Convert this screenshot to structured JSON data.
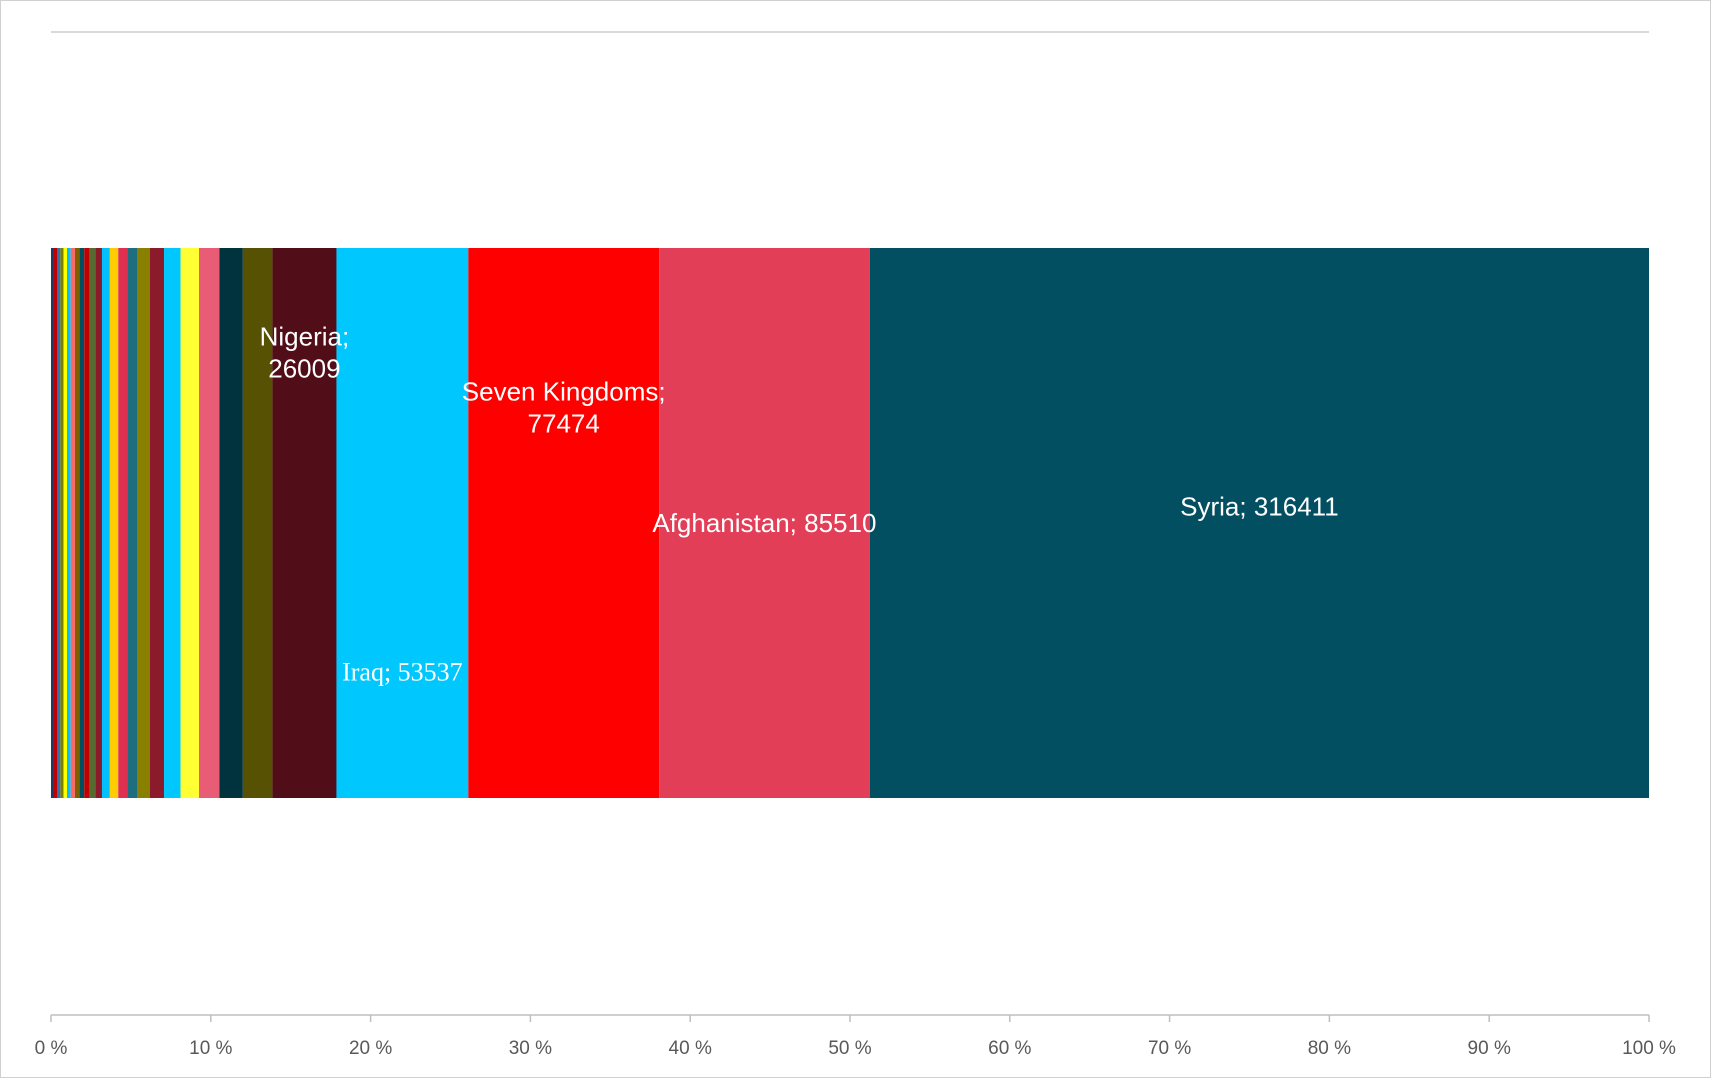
{
  "chart_data": {
    "type": "bar",
    "orientation": "horizontal-100%-stacked",
    "xlim": [
      0,
      100
    ],
    "x_ticks": [
      "0 %",
      "10 %",
      "20 %",
      "30 %",
      "40 %",
      "50 %",
      "60 %",
      "70 %",
      "80 %",
      "90 %",
      "100 %"
    ],
    "grid": "major vertical gridline at 100 %",
    "legend": "none",
    "series": [
      {
        "value": 1200,
        "color": "#1f3a5f"
      },
      {
        "value": 1400,
        "color": "#c00000"
      },
      {
        "value": 1200,
        "color": "#2e75b6"
      },
      {
        "value": 1300,
        "color": "#808000"
      },
      {
        "value": 1400,
        "color": "#ffff00"
      },
      {
        "value": 1500,
        "color": "#00c0ff"
      },
      {
        "value": 1700,
        "color": "#ff6666"
      },
      {
        "value": 1800,
        "color": "#7f6000"
      },
      {
        "value": 2000,
        "color": "#005060"
      },
      {
        "value": 2200,
        "color": "#c00000"
      },
      {
        "value": 2400,
        "color": "#556b2f"
      },
      {
        "value": 2600,
        "color": "#8b1a2b"
      },
      {
        "value": 3200,
        "color": "#00c0ff"
      },
      {
        "value": 3400,
        "color": "#ffcc00"
      },
      {
        "value": 3600,
        "color": "#e03050"
      },
      {
        "value": 4300,
        "color": "#1f6e80"
      },
      {
        "value": 5000,
        "color": "#8a8000"
      },
      {
        "value": 5700,
        "color": "#8b1a2b"
      },
      {
        "value": 6700,
        "color": "#00c8ff"
      },
      {
        "value": 7500,
        "color": "#ffff33"
      },
      {
        "value": 8300,
        "color": "#e85d75"
      },
      {
        "value": 9500,
        "color": "#01333f"
      },
      {
        "value": 12000,
        "color": "#575104"
      },
      {
        "value": 26009,
        "color": "#520e18",
        "name": "Nigeria",
        "label": [
          "Nigeria;",
          "26009"
        ]
      },
      {
        "value": 53537,
        "color": "#00c8ff",
        "name": "Iraq",
        "label": [
          "Iraq; 53537"
        ]
      },
      {
        "value": 77474,
        "color": "#ff0000",
        "name": "Seven Kingdoms",
        "label": [
          "Seven Kingdoms;",
          "77474"
        ]
      },
      {
        "value": 85510,
        "color": "#e23e57",
        "name": "Afghanistan",
        "label": [
          "Afghanistan; 85510"
        ]
      },
      {
        "value": 316411,
        "color": "#034f62",
        "name": "Syria",
        "label": [
          "Syria; 316411"
        ]
      }
    ]
  }
}
